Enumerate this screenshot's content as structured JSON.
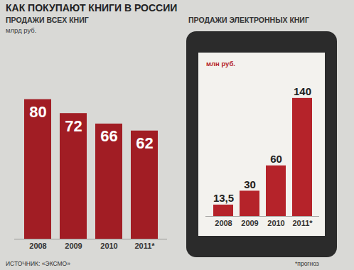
{
  "title": "КАК ПОКУПАЮТ КНИГИ В РОССИИ",
  "caption": "ИСТОЧНИК: «ЭКСМО»",
  "note": "*прогноз",
  "chart_data": [
    {
      "type": "bar",
      "title": "ПРОДАЖИ ВСЕХ КНИГ",
      "ylabel": "млрд руб.",
      "categories": [
        "2008",
        "2009",
        "2010",
        "2011*"
      ],
      "values": [
        80,
        72,
        66,
        62
      ],
      "color": "#a11d24",
      "ylim": [
        0,
        90
      ],
      "data_labels": true,
      "tick_labels": "x"
    },
    {
      "type": "bar",
      "title": "ПРОДАЖИ ЭЛЕКТРОННЫХ КНИГ",
      "ylabel": "млн руб.",
      "categories": [
        "2008",
        "2009",
        "2010",
        "2011*"
      ],
      "values": [
        13.5,
        30,
        60,
        140
      ],
      "value_labels": [
        "13,5",
        "30",
        "60",
        "140"
      ],
      "color": "#b5232a",
      "ylim": [
        0,
        150
      ],
      "data_labels": true,
      "tick_labels": "x"
    }
  ]
}
